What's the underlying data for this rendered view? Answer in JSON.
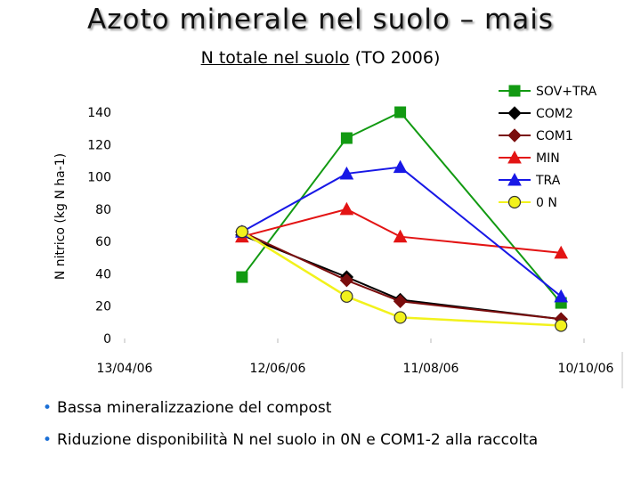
{
  "header": {
    "title": "Azoto minerale nel suolo – mais",
    "subtitle_underlined": "N totale nel suolo",
    "subtitle_rest": "(TO 2006)"
  },
  "bullets": [
    "Bassa mineralizzazione del compost",
    "Riduzione disponibilità N nel suolo in 0N e COM1-2 alla raccolta"
  ],
  "chart_data": {
    "type": "line",
    "title": "N totale nel suolo (TO 2006)",
    "ylabel": "N nitrico (kg N ha-1)",
    "xlabel": "",
    "ylim": [
      0,
      140
    ],
    "yticks": [
      0,
      20,
      40,
      60,
      80,
      100,
      120,
      140
    ],
    "xticks": [
      "13/04/06",
      "12/06/06",
      "11/08/06",
      "10/10/06"
    ],
    "x_dates": [
      "2006-05-29",
      "2006-07-09",
      "2006-07-30",
      "2006-10-01"
    ],
    "legend_position": "top-right",
    "series": [
      {
        "name": "SOV+TRA",
        "color": "#129a12",
        "marker": "square",
        "values": [
          38,
          124,
          140,
          22
        ]
      },
      {
        "name": "COM2",
        "color": "#000000",
        "marker": "diamond",
        "values": [
          64,
          38,
          24,
          12
        ]
      },
      {
        "name": "COM1",
        "color": "#7a0d0d",
        "marker": "diamond",
        "values": [
          66,
          36,
          23,
          12
        ]
      },
      {
        "name": "MIN",
        "color": "#e31414",
        "marker": "triangle",
        "values": [
          63,
          80,
          63,
          53
        ]
      },
      {
        "name": "TRA",
        "color": "#1818e6",
        "marker": "triangle",
        "values": [
          66,
          102,
          106,
          26
        ]
      },
      {
        "name": "0 N",
        "color": "#f2f21c",
        "marker": "circle",
        "values": [
          66,
          26,
          13,
          8
        ]
      }
    ]
  }
}
